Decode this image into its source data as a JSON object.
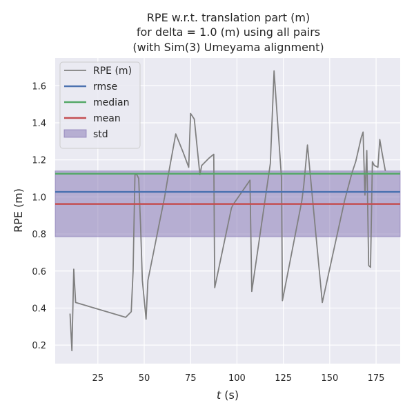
{
  "chart_data": {
    "type": "line",
    "title_lines": [
      "RPE w.r.t. translation part (m)",
      "for delta = 1.0 (m) using all pairs",
      "(with Sim(3) Umeyama alignment)"
    ],
    "xlabel_italic": "t",
    "xlabel_rest": " (s)",
    "ylabel": "RPE (m)",
    "xlim": [
      2,
      188
    ],
    "ylim": [
      0.1,
      1.75
    ],
    "xticks": [
      {
        "value": 25,
        "label": "25"
      },
      {
        "value": 50,
        "label": "50"
      },
      {
        "value": 75,
        "label": "75"
      },
      {
        "value": 100,
        "label": "100"
      },
      {
        "value": 125,
        "label": "125"
      },
      {
        "value": 150,
        "label": "150"
      },
      {
        "value": 175,
        "label": "175"
      }
    ],
    "yticks": [
      {
        "value": 0.2,
        "label": "0.2"
      },
      {
        "value": 0.4,
        "label": "0.4"
      },
      {
        "value": 0.6,
        "label": "0.6"
      },
      {
        "value": 0.8,
        "label": "0.8"
      },
      {
        "value": 1.0,
        "label": "1.0"
      },
      {
        "value": 1.2,
        "label": "1.2"
      },
      {
        "value": 1.4,
        "label": "1.4"
      },
      {
        "value": 1.6,
        "label": "1.6"
      }
    ],
    "grid": true,
    "legend_position": "top-left",
    "background_color": "#eaeaf2",
    "grid_color": "#ffffff",
    "series": [
      {
        "name": "RPE (m)",
        "kind": "line",
        "color": "#808080",
        "x": [
          10,
          11,
          12,
          13,
          40,
          43,
          44,
          45,
          46,
          47,
          48,
          49,
          51,
          52,
          53,
          55,
          58,
          61,
          63,
          67,
          71,
          74,
          75,
          77,
          80,
          81,
          85,
          87.5,
          88,
          97,
          98,
          107,
          108,
          118,
          120,
          124,
          124.5,
          135,
          136,
          138,
          146,
          158,
          162,
          164,
          167,
          168,
          169,
          170,
          171,
          172,
          173,
          174,
          176,
          177,
          178,
          180
        ],
        "y": [
          0.37,
          0.17,
          0.61,
          0.43,
          0.35,
          0.38,
          0.6,
          1.12,
          1.12,
          1.1,
          0.85,
          0.55,
          0.34,
          0.55,
          0.6,
          0.7,
          0.85,
          1.0,
          1.12,
          1.34,
          1.24,
          1.16,
          1.45,
          1.42,
          1.12,
          1.17,
          1.21,
          1.23,
          0.51,
          0.94,
          0.96,
          1.09,
          0.49,
          1.18,
          1.68,
          1.1,
          0.44,
          0.98,
          1.06,
          1.28,
          0.43,
          0.98,
          1.13,
          1.19,
          1.32,
          1.35,
          1.01,
          1.25,
          0.63,
          0.62,
          1.19,
          1.17,
          1.16,
          1.31,
          1.25,
          1.14
        ]
      },
      {
        "name": "rmse",
        "kind": "hline",
        "color": "#4c72b0",
        "value": 1.027
      },
      {
        "name": "median",
        "kind": "hline",
        "color": "#55a868",
        "value": 1.125
      },
      {
        "name": "mean",
        "kind": "hline",
        "color": "#c44e52",
        "value": 0.962
      },
      {
        "name": "std",
        "kind": "band",
        "color": "#8172b2",
        "opacity": 0.5,
        "lower": 0.785,
        "upper": 1.14
      }
    ]
  }
}
